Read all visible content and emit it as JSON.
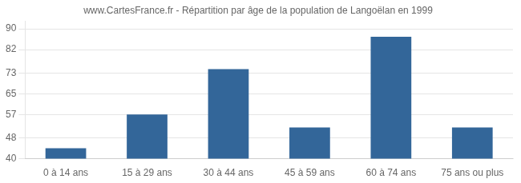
{
  "chart_data": {
    "type": "bar",
    "title": "www.CartesFrance.fr - Répartition par âge de la population de Langoëlan en 1999",
    "categories": [
      "0 à 14 ans",
      "15 à 29 ans",
      "30 à 44 ans",
      "45 à 59 ans",
      "60 à 74 ans",
      "75 ans ou plus"
    ],
    "values": [
      44,
      57,
      74.5,
      52,
      87,
      52
    ],
    "color": "#336699",
    "ylim": [
      40,
      93
    ],
    "yticks": [
      40,
      48,
      57,
      65,
      73,
      82,
      90
    ],
    "grid": true
  }
}
